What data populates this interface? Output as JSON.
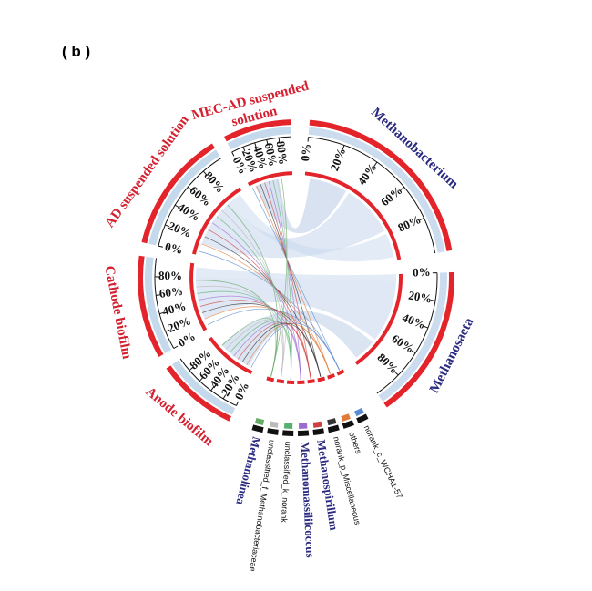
{
  "panel_label": "( b )",
  "samples": [
    {
      "label_lines": [
        "MEC-AD suspended",
        "solution"
      ],
      "ticks": [
        "0%",
        "20%",
        "40%",
        "60%",
        "80%"
      ]
    },
    {
      "label_lines": [
        "AD suspended solution"
      ],
      "ticks": [
        "0%",
        "20%",
        "40%",
        "60%",
        "80%"
      ]
    },
    {
      "label_lines": [
        "Cathode biofilm"
      ],
      "ticks": [
        "0%",
        "20%",
        "40%",
        "60%",
        "80%"
      ]
    },
    {
      "label_lines": [
        "Anode biofilm"
      ],
      "ticks": [
        "0%",
        "20%",
        "40%",
        "60%",
        "80%"
      ]
    }
  ],
  "taxa": [
    {
      "label": "Methanobacterium",
      "ticks": [
        "0%",
        "20%",
        "40%",
        "60%",
        "80%"
      ]
    },
    {
      "label": "Methanosaeta",
      "ticks": [
        "0%",
        "20%",
        "40%",
        "60%",
        "80%"
      ]
    }
  ],
  "minor_taxa": [
    "norank_c_WCHA1-57",
    "others",
    "norank_p_Miscellaneous",
    "Methanospirillum",
    "Methanomassiliicoccus",
    "unclassified_k_norank",
    "unclassified_f_Methanobacteriaceae",
    "Methanolinea"
  ]
}
